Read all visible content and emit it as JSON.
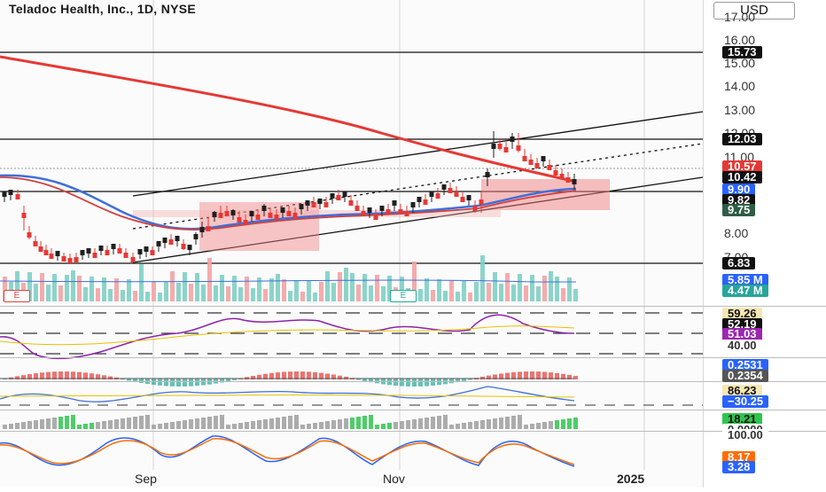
{
  "header": {
    "title": "Teladoc Health, Inc., 1D, NYSE"
  },
  "axis": {
    "currency": "USD",
    "price_ticks": [
      "17.00",
      "16.00",
      "15.00",
      "14.00",
      "13.00",
      "12.00",
      "11.00",
      "8.00",
      "7.00"
    ],
    "price_badges": [
      {
        "label": "15.73",
        "bg": "#111111",
        "fg": "#ffffff"
      },
      {
        "label": "12.03",
        "bg": "#111111",
        "fg": "#ffffff"
      },
      {
        "label": "10.57",
        "bg": "#e53935",
        "fg": "#ffffff"
      },
      {
        "label": "10.42",
        "bg": "#111111",
        "fg": "#ffffff"
      },
      {
        "label": "9.90",
        "bg": "#2962ff",
        "fg": "#ffffff"
      },
      {
        "label": "9.82",
        "bg": "#111111",
        "fg": "#ffffff"
      },
      {
        "label": "9.75",
        "bg": "#2e5e45",
        "fg": "#ffffff"
      },
      {
        "label": "6.83",
        "bg": "#111111",
        "fg": "#ffffff"
      }
    ],
    "volume_badges": [
      {
        "label": "5.85 M",
        "bg": "#2962ff",
        "fg": "#ffffff"
      },
      {
        "label": "4.47 M",
        "bg": "#26a69a",
        "fg": "#ffffff"
      }
    ],
    "rsi_badges": [
      {
        "label": "59.26",
        "bg": "#f6e7b4",
        "fg": "#111111"
      },
      {
        "label": "52.19",
        "bg": "#111111",
        "fg": "#ffffff"
      },
      {
        "label": "51.03",
        "bg": "#9c27b0",
        "fg": "#ffffff"
      },
      {
        "label": "40.00",
        "bg": "#ffffff",
        "fg": "#333333"
      }
    ],
    "macd_badges": [
      {
        "label": "0.2531",
        "bg": "#2962ff",
        "fg": "#ffffff"
      },
      {
        "label": "0.2354",
        "bg": "#555555",
        "fg": "#ffffff"
      }
    ],
    "cci_badges": [
      {
        "label": "86.23",
        "bg": "#f6e7b4",
        "fg": "#111111"
      },
      {
        "label": "−30.25",
        "bg": "#2962ff",
        "fg": "#ffffff"
      }
    ],
    "mom_badges": [
      {
        "label": "18.21",
        "bg": "#2fc44f",
        "fg": "#111111"
      },
      {
        "label": "0.0000",
        "bg": "#ffffff",
        "fg": "#333333"
      }
    ],
    "stoch_badges": [
      {
        "label": "100.00",
        "bg": "#ffffff",
        "fg": "#333333"
      },
      {
        "label": "8.17",
        "bg": "#ff6d00",
        "fg": "#ffffff"
      },
      {
        "label": "3.28",
        "bg": "#2962ff",
        "fg": "#ffffff"
      }
    ]
  },
  "x_labels": [
    "Sep",
    "Nov",
    "2025"
  ],
  "earnings_marker": "E",
  "colors": {
    "up": "#1f1f1f",
    "down": "#e53935",
    "ema_long": "#e53935",
    "ema_blue": "#3f6fd8"
  }
}
